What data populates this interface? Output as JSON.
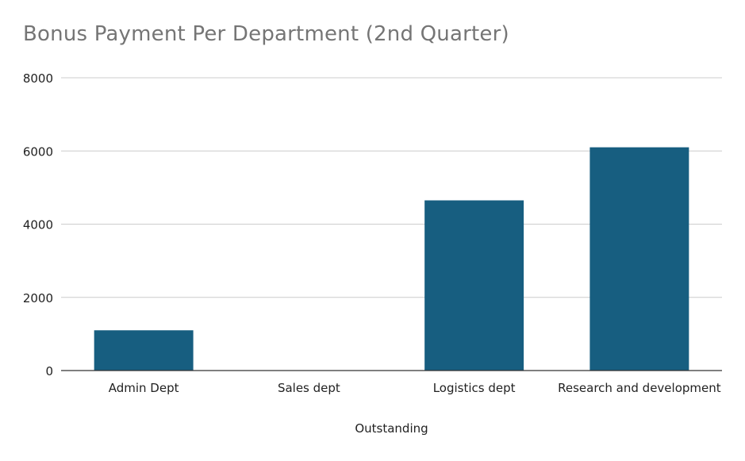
{
  "chart_data": {
    "type": "bar",
    "title": "Bonus Payment Per Department (2nd Quarter)",
    "xlabel": "Outstanding",
    "ylabel": "",
    "categories": [
      "Admin Dept",
      "Sales dept",
      "Logistics dept",
      "Research and development"
    ],
    "values": [
      1100,
      0,
      4650,
      6100
    ],
    "ylim": [
      0,
      8000
    ],
    "yticks": [
      0,
      2000,
      4000,
      6000,
      8000
    ],
    "grid": true,
    "legend": "none",
    "bar_color": "#175e80",
    "title_color": "#757575",
    "grid_color": "#cccccc",
    "axis_color": "#333333"
  }
}
